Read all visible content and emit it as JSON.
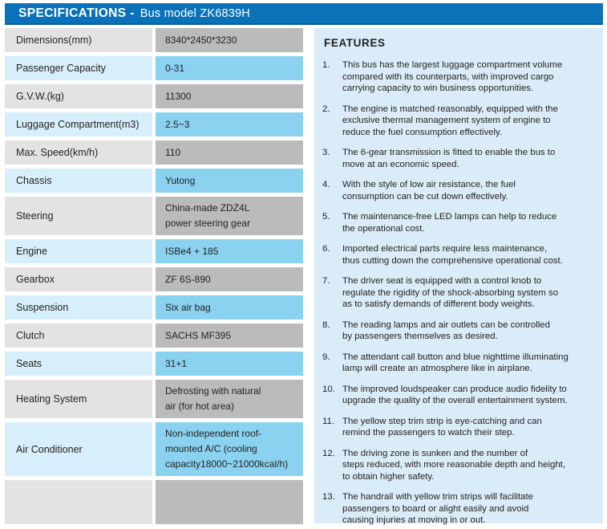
{
  "header": {
    "title_bold": "SPECIFICATIONS -",
    "title_rest": "Bus model ZK6839H"
  },
  "specs": {
    "rows": [
      {
        "label": "Dimensions(mm)",
        "value": "8340*2450*3230"
      },
      {
        "label": "Passenger Capacity",
        "value": "0-31"
      },
      {
        "label": "G.V.W.(kg)",
        "value": "11300"
      },
      {
        "label": "Luggage Compartment(m3)",
        "value": "2.5~3"
      },
      {
        "label": "Max. Speed(km/h)",
        "value": "110"
      },
      {
        "label": "Chassis",
        "value": "Yutong"
      },
      {
        "label": "Steering",
        "value": "China-made ZDZ4L\npower steering gear"
      },
      {
        "label": "Engine",
        "value": "ISBe4 + 185"
      },
      {
        "label": "Gearbox",
        "value": "ZF 6S-890"
      },
      {
        "label": "Suspension",
        "value": "Six air bag"
      },
      {
        "label": "Clutch",
        "value": "SACHS MF395"
      },
      {
        "label": "Seats",
        "value": "31+1"
      },
      {
        "label": "Heating System",
        "value": "Defrosting with natural\nair (for hot area)"
      },
      {
        "label": "Air Conditioner",
        "value": "Non-independent roof-\nmounted A/C (cooling\ncapacity18000~21000kcal/h)"
      },
      {
        "label": "",
        "value": ""
      }
    ]
  },
  "features": {
    "title": "FEATURES",
    "items": [
      {
        "num": "1.",
        "text": "This bus has the largest luggage compartment volume\ncompared with its counterparts, with improved cargo\ncarrying capacity to win business opportunities."
      },
      {
        "num": "2.",
        "text": "The engine is matched reasonably, equipped with the\nexclusive thermal management system of engine to\nreduce the fuel consumption effectively."
      },
      {
        "num": "3.",
        "text": "The 6-gear transmission is fitted to enable the bus to\nmove at an economic speed."
      },
      {
        "num": "4.",
        "text": "With the style of low air resistance, the fuel\nconsumption can be cut down effectively."
      },
      {
        "num": "5.",
        "text": "The maintenance-free LED lamps can help to reduce\nthe operational cost."
      },
      {
        "num": "6.",
        "text": "Imported electrical parts require less maintenance,\nthus cutting down the comprehensive operational cost."
      },
      {
        "num": "7.",
        "text": "The driver seat is equipped with a control knob to\nregulate the rigidity of the shock-absorbing system so\nas to satisfy demands of different body weights."
      },
      {
        "num": "8.",
        "text": "The reading lamps and air outlets can be controlled\nby passengers themselves as desired."
      },
      {
        "num": "9.",
        "text": "The attendant call button and blue nighttime illuminating\nlamp will create an atmosphere like in airplane."
      },
      {
        "num": "10.",
        "text": "The improved loudspeaker can produce audio fidelity to\nupgrade the quality of the overall entertainment system."
      },
      {
        "num": "11.",
        "text": "The yellow step trim strip is eye-catching and can\nremind the passengers to watch their step."
      },
      {
        "num": "12.",
        "text": "The driving zone is sunken and the number of\nsteps reduced, with more reasonable depth and height,\nto obtain higher safety."
      },
      {
        "num": "13.",
        "text": "The handrail with yellow trim strips will facilitate\npassengers to board or alight easily and avoid\ncausing injuries at moving in or out."
      }
    ]
  },
  "colors": {
    "header_blue": "#0b71b8",
    "header_edge": "#085e97",
    "header_text": "#ffffff",
    "features_bg": "#d9ecf8",
    "label_gray": "#e3e3e3",
    "label_blue": "#d6effb",
    "value_gray": "#bbbbbb",
    "value_cyan": "#8ad2ef",
    "text_dark": "#231f20"
  }
}
